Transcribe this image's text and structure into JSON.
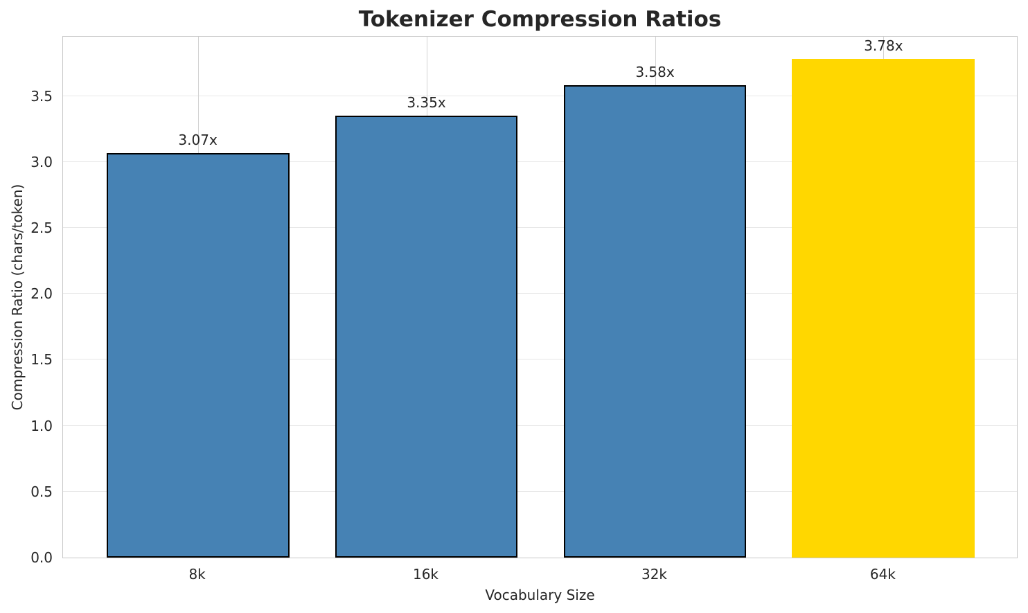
{
  "chart_data": {
    "type": "bar",
    "title": "Tokenizer Compression Ratios",
    "xlabel": "Vocabulary Size",
    "ylabel": "Compression Ratio (chars/token)",
    "categories": [
      "8k",
      "16k",
      "32k",
      "64k"
    ],
    "values": [
      3.07,
      3.35,
      3.58,
      3.78
    ],
    "bar_labels": [
      "3.07x",
      "3.35x",
      "3.58x",
      "3.78x"
    ],
    "bar_colors": [
      "#4682B4",
      "#4682B4",
      "#4682B4",
      "#FFD700"
    ],
    "bar_edge_colors": [
      "#000000",
      "#000000",
      "#000000",
      "none"
    ],
    "ylim": [
      0,
      3.96
    ],
    "yticks": [
      0.0,
      0.5,
      1.0,
      1.5,
      2.0,
      2.5,
      3.0,
      3.5
    ],
    "ytick_labels": [
      "0.0",
      "0.5",
      "1.0",
      "1.5",
      "2.0",
      "2.5",
      "3.0",
      "3.5"
    ],
    "grid": true,
    "legend": "none",
    "colors": {
      "bar_default": "#4682B4",
      "bar_highlight": "#FFD700",
      "text": "#262626",
      "grid_horizontal": "#e7e7e7",
      "grid_vertical": "#d2d2d2",
      "spine": "#c8c8c8",
      "background": "#ffffff"
    }
  }
}
